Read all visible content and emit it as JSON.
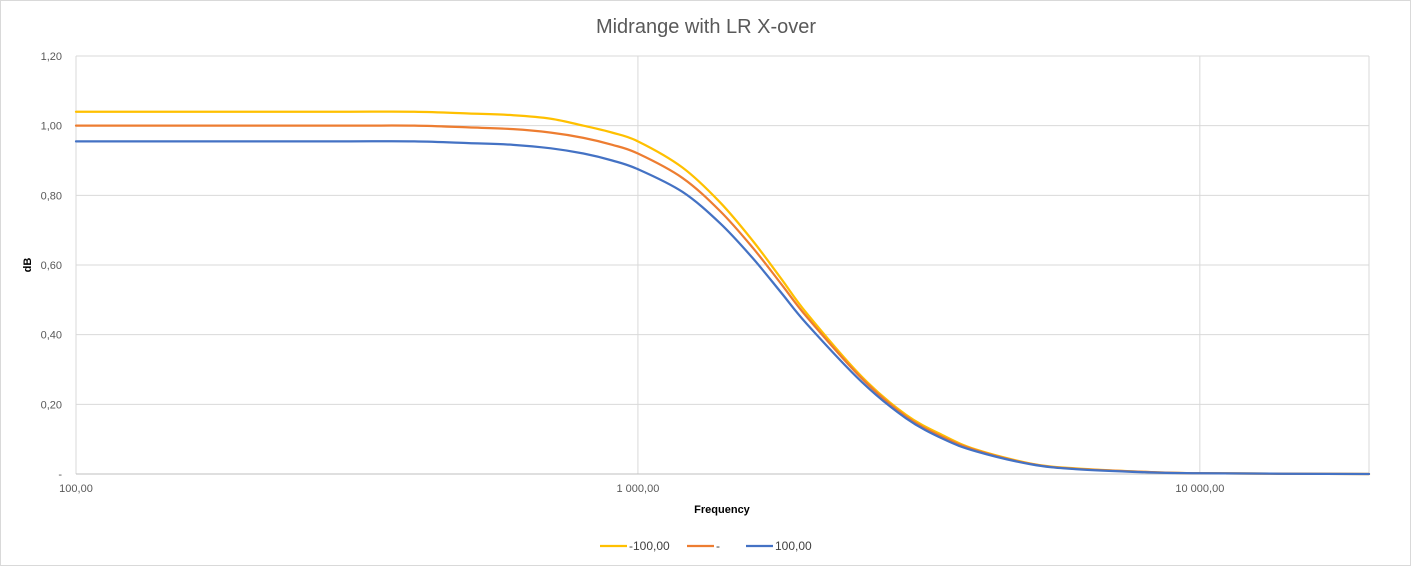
{
  "chart_data": {
    "type": "line",
    "title": "Midrange with LR X-over",
    "xlabel": "Frequency",
    "ylabel": "dB",
    "x_scale": "log",
    "xlim": [
      100,
      20000
    ],
    "ylim": [
      0,
      1.2
    ],
    "grid": true,
    "legend_position": "bottom",
    "x_ticks": [
      {
        "value": 100,
        "label": "100,00"
      },
      {
        "value": 1000,
        "label": "1 000,00"
      },
      {
        "value": 10000,
        "label": "10 000,00"
      }
    ],
    "y_ticks": [
      {
        "value": 0,
        "label": "-"
      },
      {
        "value": 0.2,
        "label": "0,20"
      },
      {
        "value": 0.4,
        "label": "0,40"
      },
      {
        "value": 0.6,
        "label": "0,60"
      },
      {
        "value": 0.8,
        "label": "0,80"
      },
      {
        "value": 1.0,
        "label": "1,00"
      },
      {
        "value": 1.2,
        "label": "1,20"
      }
    ],
    "x": [
      100,
      200,
      300,
      400,
      500,
      600,
      700,
      800,
      900,
      1000,
      1200,
      1400,
      1600,
      1800,
      2000,
      2500,
      3000,
      3500,
      4000,
      5000,
      6000,
      8000,
      10000,
      20000
    ],
    "series": [
      {
        "name": "-100,00",
        "color": "#FFC000",
        "values": [
          1.04,
          1.04,
          1.04,
          1.04,
          1.035,
          1.03,
          1.02,
          1.0,
          0.98,
          0.955,
          0.88,
          0.78,
          0.67,
          0.56,
          0.46,
          0.28,
          0.17,
          0.11,
          0.07,
          0.03,
          0.016,
          0.006,
          0.002,
          0.0
        ]
      },
      {
        "name": "-",
        "color": "#ED7D31",
        "values": [
          1.0,
          1.0,
          1.0,
          1.0,
          0.995,
          0.99,
          0.98,
          0.965,
          0.945,
          0.92,
          0.85,
          0.755,
          0.65,
          0.545,
          0.45,
          0.275,
          0.165,
          0.105,
          0.068,
          0.029,
          0.015,
          0.006,
          0.002,
          0.0
        ]
      },
      {
        "name": "100,00",
        "color": "#4472C4",
        "values": [
          0.955,
          0.955,
          0.955,
          0.955,
          0.95,
          0.945,
          0.935,
          0.92,
          0.9,
          0.875,
          0.81,
          0.72,
          0.62,
          0.52,
          0.43,
          0.265,
          0.16,
          0.1,
          0.065,
          0.028,
          0.014,
          0.005,
          0.002,
          0.0
        ]
      }
    ]
  }
}
